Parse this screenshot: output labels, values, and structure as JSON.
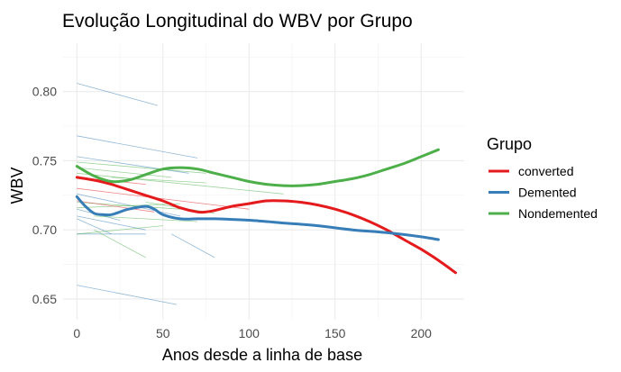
{
  "chart_data": {
    "type": "line",
    "title": "Evolução Longitudinal do WBV por Grupo",
    "xlabel": "Anos desde a linha de base",
    "ylabel": "WBV",
    "xlim": [
      -8,
      225
    ],
    "ylim": [
      0.635,
      0.835
    ],
    "x_ticks": [
      0,
      50,
      100,
      150,
      200
    ],
    "y_ticks": [
      0.65,
      0.7,
      0.75,
      0.8
    ],
    "grid": true,
    "legend": {
      "title": "Grupo",
      "position": "right"
    },
    "series": [
      {
        "name": "converted",
        "color": "#e41a1c",
        "x": [
          0,
          10,
          20,
          30,
          40,
          50,
          60,
          70,
          75,
          80,
          90,
          100,
          110,
          120,
          130,
          140,
          150,
          160,
          170,
          180,
          190,
          200,
          210,
          220
        ],
        "y": [
          0.738,
          0.736,
          0.733,
          0.729,
          0.725,
          0.721,
          0.716,
          0.713,
          0.713,
          0.714,
          0.717,
          0.719,
          0.721,
          0.721,
          0.72,
          0.718,
          0.715,
          0.711,
          0.706,
          0.7,
          0.693,
          0.686,
          0.678,
          0.669
        ]
      },
      {
        "name": "Demented",
        "color": "#377eb8",
        "x": [
          0,
          5,
          10,
          15,
          20,
          25,
          30,
          40,
          45,
          50,
          60,
          70,
          80,
          100,
          120,
          140,
          160,
          180,
          200,
          210
        ],
        "y": [
          0.724,
          0.717,
          0.712,
          0.711,
          0.711,
          0.713,
          0.715,
          0.717,
          0.715,
          0.711,
          0.708,
          0.708,
          0.708,
          0.707,
          0.705,
          0.703,
          0.7,
          0.698,
          0.695,
          0.693
        ]
      },
      {
        "name": "Nondemented",
        "color": "#4daf4a",
        "x": [
          0,
          10,
          20,
          30,
          40,
          50,
          60,
          70,
          80,
          90,
          100,
          110,
          120,
          130,
          140,
          150,
          160,
          170,
          180,
          190,
          200,
          210
        ],
        "y": [
          0.746,
          0.739,
          0.735,
          0.736,
          0.74,
          0.744,
          0.745,
          0.744,
          0.741,
          0.738,
          0.735,
          0.733,
          0.732,
          0.732,
          0.733,
          0.735,
          0.737,
          0.74,
          0.744,
          0.748,
          0.753,
          0.758
        ]
      }
    ],
    "individual_trajectories": [
      {
        "group": "Demented",
        "x": [
          0,
          47
        ],
        "y": [
          0.806,
          0.79
        ]
      },
      {
        "group": "Demented",
        "x": [
          0,
          70
        ],
        "y": [
          0.768,
          0.752
        ]
      },
      {
        "group": "Demented",
        "x": [
          0,
          65
        ],
        "y": [
          0.753,
          0.741
        ]
      },
      {
        "group": "Demented",
        "x": [
          0,
          60
        ],
        "y": [
          0.726,
          0.71
        ]
      },
      {
        "group": "Demented",
        "x": [
          0,
          25
        ],
        "y": [
          0.715,
          0.707
        ]
      },
      {
        "group": "Demented",
        "x": [
          0,
          40
        ],
        "y": [
          0.71,
          0.7
        ]
      },
      {
        "group": "Demented",
        "x": [
          0,
          40
        ],
        "y": [
          0.697,
          0.697
        ]
      },
      {
        "group": "Demented",
        "x": [
          55,
          80
        ],
        "y": [
          0.697,
          0.68
        ]
      },
      {
        "group": "Demented",
        "x": [
          0,
          58
        ],
        "y": [
          0.66,
          0.646
        ]
      },
      {
        "group": "Demented",
        "x": [
          0,
          20
        ],
        "y": [
          0.708,
          0.697
        ]
      },
      {
        "group": "Nondemented",
        "x": [
          0,
          75
        ],
        "y": [
          0.749,
          0.741
        ]
      },
      {
        "group": "Nondemented",
        "x": [
          0,
          55
        ],
        "y": [
          0.745,
          0.738
        ]
      },
      {
        "group": "Nondemented",
        "x": [
          0,
          120
        ],
        "y": [
          0.741,
          0.726
        ]
      },
      {
        "group": "Nondemented",
        "x": [
          20,
          75
        ],
        "y": [
          0.738,
          0.734
        ]
      },
      {
        "group": "Nondemented",
        "x": [
          0,
          60
        ],
        "y": [
          0.72,
          0.715
        ]
      },
      {
        "group": "Nondemented",
        "x": [
          0,
          60
        ],
        "y": [
          0.716,
          0.719
        ]
      },
      {
        "group": "Nondemented",
        "x": [
          10,
          70
        ],
        "y": [
          0.71,
          0.706
        ]
      },
      {
        "group": "Nondemented",
        "x": [
          0,
          50
        ],
        "y": [
          0.697,
          0.703
        ]
      },
      {
        "group": "Nondemented",
        "x": [
          10,
          40
        ],
        "y": [
          0.7,
          0.68
        ]
      },
      {
        "group": "Nondemented",
        "x": [
          40,
          80
        ],
        "y": [
          0.72,
          0.712
        ]
      },
      {
        "group": "converted",
        "x": [
          0,
          40
        ],
        "y": [
          0.738,
          0.733
        ]
      },
      {
        "group": "converted",
        "x": [
          0,
          45
        ],
        "y": [
          0.721,
          0.713
        ]
      },
      {
        "group": "converted",
        "x": [
          0,
          100
        ],
        "y": [
          0.73,
          0.715
        ]
      }
    ]
  }
}
